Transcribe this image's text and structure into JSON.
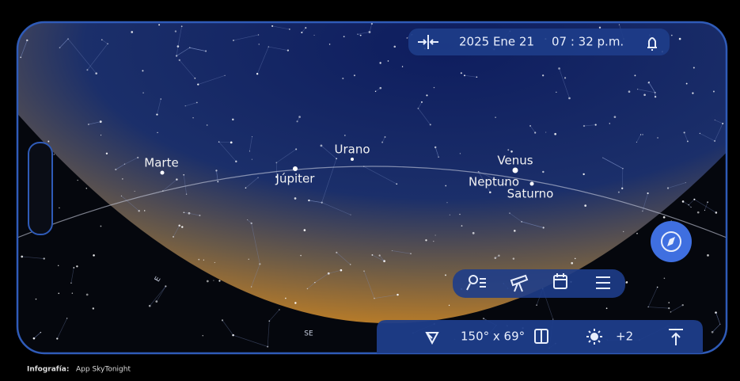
{
  "header": {
    "date": "2025 Ene 21",
    "time": "07 : 32 p.m."
  },
  "sky": {
    "planets": [
      "Marte",
      "Urano",
      "Júpiter",
      "Venus",
      "Neptuno",
      "Saturno"
    ],
    "directions": [
      "E",
      "SE"
    ]
  },
  "bottom_bar": {
    "field_of_view": "150° x 69°",
    "brightness": "+2"
  },
  "credit": {
    "label": "Infografía:",
    "source": "App SkyTonight"
  }
}
